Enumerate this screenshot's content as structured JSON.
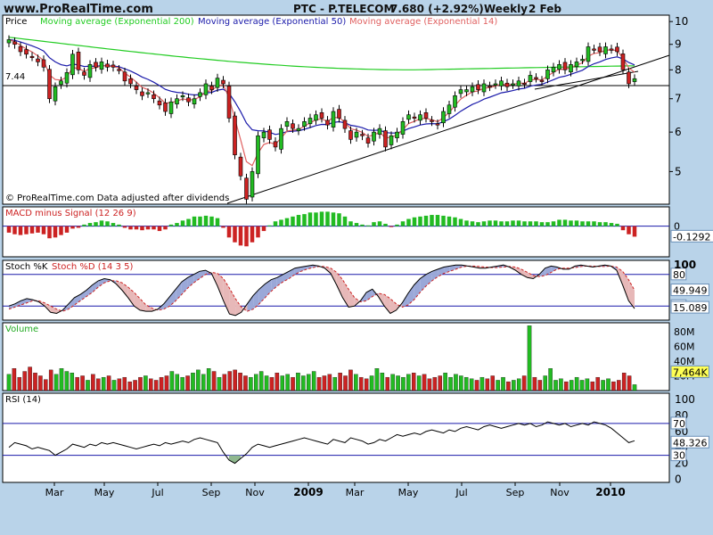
{
  "header": {
    "site": "www.ProRealTime.com",
    "title": "PTC - P.TELECOM",
    "price": "7.680 (+2.92%)",
    "period": "Weekly",
    "date": "2 Feb"
  },
  "colors": {
    "background": "#b9d3e9",
    "panel": "#ffffff",
    "up": "#22bb22",
    "down": "#cc2222",
    "ema200": "#22cc22",
    "ema50": "#1a1aaa",
    "ema14": "#e06060",
    "highlight": "#ffff55"
  },
  "chart_data": [
    {
      "panel": "price",
      "type": "candlestick",
      "title": "Price",
      "note": "© ProRealTime.com  Data adjusted after dividends",
      "legend": [
        "Moving average (Exponential 200)",
        "Moving average (Exponential 50)",
        "Moving average (Exponential 14)"
      ],
      "y_ticks": [
        5,
        6,
        7,
        8,
        9,
        10
      ],
      "scale": "log",
      "ylim": [
        4.3,
        10.3
      ],
      "horizontal_line": {
        "value": 7.44,
        "label": "7.44"
      },
      "last": 7.68,
      "closes": [
        9.2,
        9.0,
        8.7,
        8.6,
        8.5,
        8.3,
        8.1,
        7.0,
        7.4,
        7.6,
        7.9,
        8.6,
        8.0,
        7.8,
        8.2,
        8.1,
        8.3,
        8.1,
        8.1,
        8.0,
        7.6,
        7.5,
        7.3,
        7.1,
        7.2,
        7.0,
        6.8,
        6.6,
        6.9,
        7.0,
        7.1,
        6.9,
        7.0,
        7.2,
        7.5,
        7.3,
        7.7,
        7.5,
        6.4,
        5.4,
        4.9,
        4.4,
        5.0,
        5.9,
        6.0,
        5.8,
        5.6,
        6.1,
        6.3,
        6.1,
        6.1,
        6.3,
        6.4,
        6.5,
        6.4,
        6.2,
        6.6,
        6.4,
        6.1,
        5.8,
        6.0,
        5.9,
        5.7,
        6.0,
        6.1,
        5.6,
        5.9,
        6.0,
        6.3,
        6.5,
        6.4,
        6.5,
        6.4,
        6.3,
        6.2,
        6.6,
        6.8,
        7.1,
        7.3,
        7.3,
        7.4,
        7.3,
        7.5,
        7.4,
        7.5,
        7.6,
        7.4,
        7.5,
        7.6,
        7.5,
        7.8,
        7.7,
        7.6,
        8.0,
        8.1,
        8.2,
        8.0,
        8.2,
        8.3,
        8.4,
        8.9,
        8.8,
        8.7,
        8.9,
        8.8,
        8.7,
        8.0,
        7.5,
        7.68
      ]
    },
    {
      "panel": "macd",
      "type": "bar",
      "title": "MACD minus Signal (12 26 9)",
      "y_ticks": [
        0
      ],
      "ylim": [
        -0.38,
        0.24
      ],
      "last": -0.1292,
      "last_label": "-0.1292",
      "values": [
        -0.08,
        -0.1,
        -0.11,
        -0.1,
        -0.09,
        -0.08,
        -0.1,
        -0.15,
        -0.14,
        -0.11,
        -0.08,
        -0.03,
        -0.02,
        0.02,
        0.04,
        0.05,
        0.07,
        0.06,
        0.04,
        0.02,
        -0.02,
        -0.04,
        -0.04,
        -0.05,
        -0.04,
        -0.04,
        -0.06,
        -0.04,
        0.02,
        0.04,
        0.07,
        0.09,
        0.12,
        0.12,
        0.13,
        0.12,
        0.1,
        -0.02,
        -0.14,
        -0.2,
        -0.24,
        -0.25,
        -0.2,
        -0.14,
        -0.06,
        0.01,
        0.06,
        0.08,
        0.1,
        0.12,
        0.14,
        0.15,
        0.17,
        0.17,
        0.18,
        0.18,
        0.17,
        0.16,
        0.12,
        0.06,
        0.04,
        0.02,
        0.01,
        0.05,
        0.06,
        0.03,
        -0.01,
        0.02,
        0.06,
        0.09,
        0.11,
        0.12,
        0.13,
        0.14,
        0.14,
        0.13,
        0.12,
        0.11,
        0.09,
        0.07,
        0.06,
        0.05,
        0.06,
        0.07,
        0.07,
        0.06,
        0.06,
        0.07,
        0.07,
        0.06,
        0.06,
        0.06,
        0.05,
        0.05,
        0.06,
        0.08,
        0.08,
        0.07,
        0.07,
        0.06,
        0.06,
        0.06,
        0.05,
        0.05,
        0.04,
        0.03,
        -0.05,
        -0.1,
        -0.13
      ]
    },
    {
      "panel": "stochastic",
      "type": "line",
      "title_k": "Stoch %K",
      "title_d": "Stoch %D (14 3 5)",
      "y_ticks": [
        100
      ],
      "levels": [
        80,
        20
      ],
      "level_labels": [
        "80",
        "20"
      ],
      "ylim": [
        0,
        100
      ],
      "last_k": 15.089,
      "last_k_label": "15.089",
      "last_d": 49.949,
      "last_d_label": "49.949",
      "k": [
        20,
        24,
        30,
        34,
        32,
        28,
        20,
        8,
        6,
        12,
        24,
        36,
        42,
        50,
        60,
        68,
        72,
        70,
        62,
        50,
        36,
        20,
        12,
        10,
        10,
        14,
        24,
        38,
        52,
        66,
        74,
        80,
        86,
        88,
        82,
        58,
        30,
        5,
        2,
        8,
        24,
        40,
        52,
        62,
        70,
        74,
        80,
        86,
        92,
        94,
        96,
        98,
        96,
        92,
        82,
        60,
        36,
        18,
        20,
        30,
        46,
        52,
        38,
        20,
        6,
        12,
        26,
        44,
        60,
        72,
        80,
        86,
        90,
        94,
        96,
        98,
        98,
        96,
        94,
        92,
        92,
        94,
        96,
        98,
        94,
        88,
        80,
        74,
        72,
        80,
        92,
        96,
        94,
        90,
        90,
        96,
        98,
        96,
        94,
        96,
        98,
        96,
        88,
        60,
        30,
        15.089
      ],
      "d": [
        14,
        18,
        22,
        26,
        30,
        30,
        26,
        20,
        14,
        10,
        14,
        22,
        30,
        38,
        46,
        56,
        64,
        68,
        68,
        64,
        56,
        46,
        34,
        22,
        16,
        12,
        14,
        20,
        30,
        42,
        54,
        64,
        72,
        80,
        84,
        82,
        72,
        54,
        34,
        18,
        10,
        14,
        24,
        36,
        48,
        58,
        66,
        72,
        80,
        86,
        90,
        93,
        95,
        95,
        92,
        84,
        70,
        52,
        36,
        28,
        30,
        38,
        44,
        42,
        34,
        24,
        18,
        22,
        32,
        46,
        58,
        68,
        76,
        82,
        86,
        90,
        94,
        96,
        96,
        95,
        94,
        93,
        93,
        94,
        95,
        94,
        90,
        84,
        78,
        76,
        78,
        84,
        90,
        92,
        92,
        93,
        95,
        96,
        96,
        95,
        95,
        96,
        94,
        86,
        70,
        49.949
      ]
    },
    {
      "panel": "volume",
      "type": "bar",
      "title": "Volume",
      "y_ticks": [
        "20M",
        "40M",
        "60M",
        "80M"
      ],
      "ylim": [
        0,
        92
      ],
      "unit": "M",
      "last_label": "7,464K",
      "values": [
        22,
        30,
        18,
        26,
        32,
        24,
        20,
        15,
        28,
        22,
        30,
        26,
        24,
        18,
        20,
        14,
        22,
        16,
        18,
        20,
        14,
        16,
        18,
        12,
        14,
        18,
        20,
        16,
        14,
        18,
        20,
        26,
        22,
        18,
        20,
        24,
        28,
        22,
        30,
        26,
        18,
        22,
        26,
        28,
        24,
        20,
        18,
        22,
        26,
        20,
        18,
        24,
        20,
        22,
        18,
        24,
        20,
        22,
        26,
        18,
        20,
        22,
        18,
        24,
        20,
        28,
        22,
        18,
        16,
        20,
        30,
        24,
        18,
        22,
        20,
        18,
        22,
        24,
        20,
        22,
        16,
        18,
        20,
        24,
        18,
        22,
        20,
        18,
        16,
        14,
        18,
        16,
        20,
        14,
        18,
        12,
        14,
        16,
        20,
        88,
        18,
        14,
        20,
        30,
        14,
        16,
        12,
        14,
        18,
        14,
        16,
        12,
        18,
        14,
        16,
        12,
        14,
        24,
        20,
        8
      ]
    },
    {
      "panel": "rsi",
      "type": "line",
      "title": "RSI (14)",
      "y_ticks": [
        0,
        20,
        40,
        60,
        80,
        100
      ],
      "levels": [
        70,
        30
      ],
      "level_labels": [
        "70",
        "30"
      ],
      "ylim": [
        -4,
        108
      ],
      "last": 48.326,
      "last_label": "48.326",
      "values": [
        40,
        46,
        44,
        42,
        38,
        40,
        38,
        36,
        30,
        34,
        38,
        44,
        42,
        40,
        44,
        42,
        46,
        44,
        46,
        44,
        42,
        40,
        38,
        40,
        42,
        44,
        42,
        46,
        44,
        46,
        48,
        46,
        50,
        52,
        50,
        48,
        46,
        34,
        24,
        20,
        26,
        32,
        40,
        44,
        42,
        40,
        42,
        44,
        46,
        48,
        50,
        52,
        50,
        48,
        46,
        44,
        50,
        48,
        46,
        52,
        50,
        48,
        44,
        46,
        50,
        48,
        52,
        56,
        54,
        56,
        58,
        56,
        60,
        62,
        60,
        58,
        62,
        60,
        64,
        66,
        64,
        62,
        66,
        68,
        66,
        64,
        66,
        68,
        70,
        68,
        70,
        66,
        68,
        72,
        70,
        68,
        70,
        66,
        68,
        70,
        68,
        72,
        70,
        68,
        64,
        58,
        52,
        46,
        48.326
      ]
    },
    {
      "panel": "x_axis",
      "type": "axis",
      "x_ticks": [
        "Mar",
        "May",
        "Jul",
        "Sep",
        "Nov",
        "2009",
        "Mar",
        "May",
        "Jul",
        "Sep",
        "Nov",
        "2010"
      ],
      "bold_ticks": [
        "2009",
        "2010"
      ]
    }
  ]
}
